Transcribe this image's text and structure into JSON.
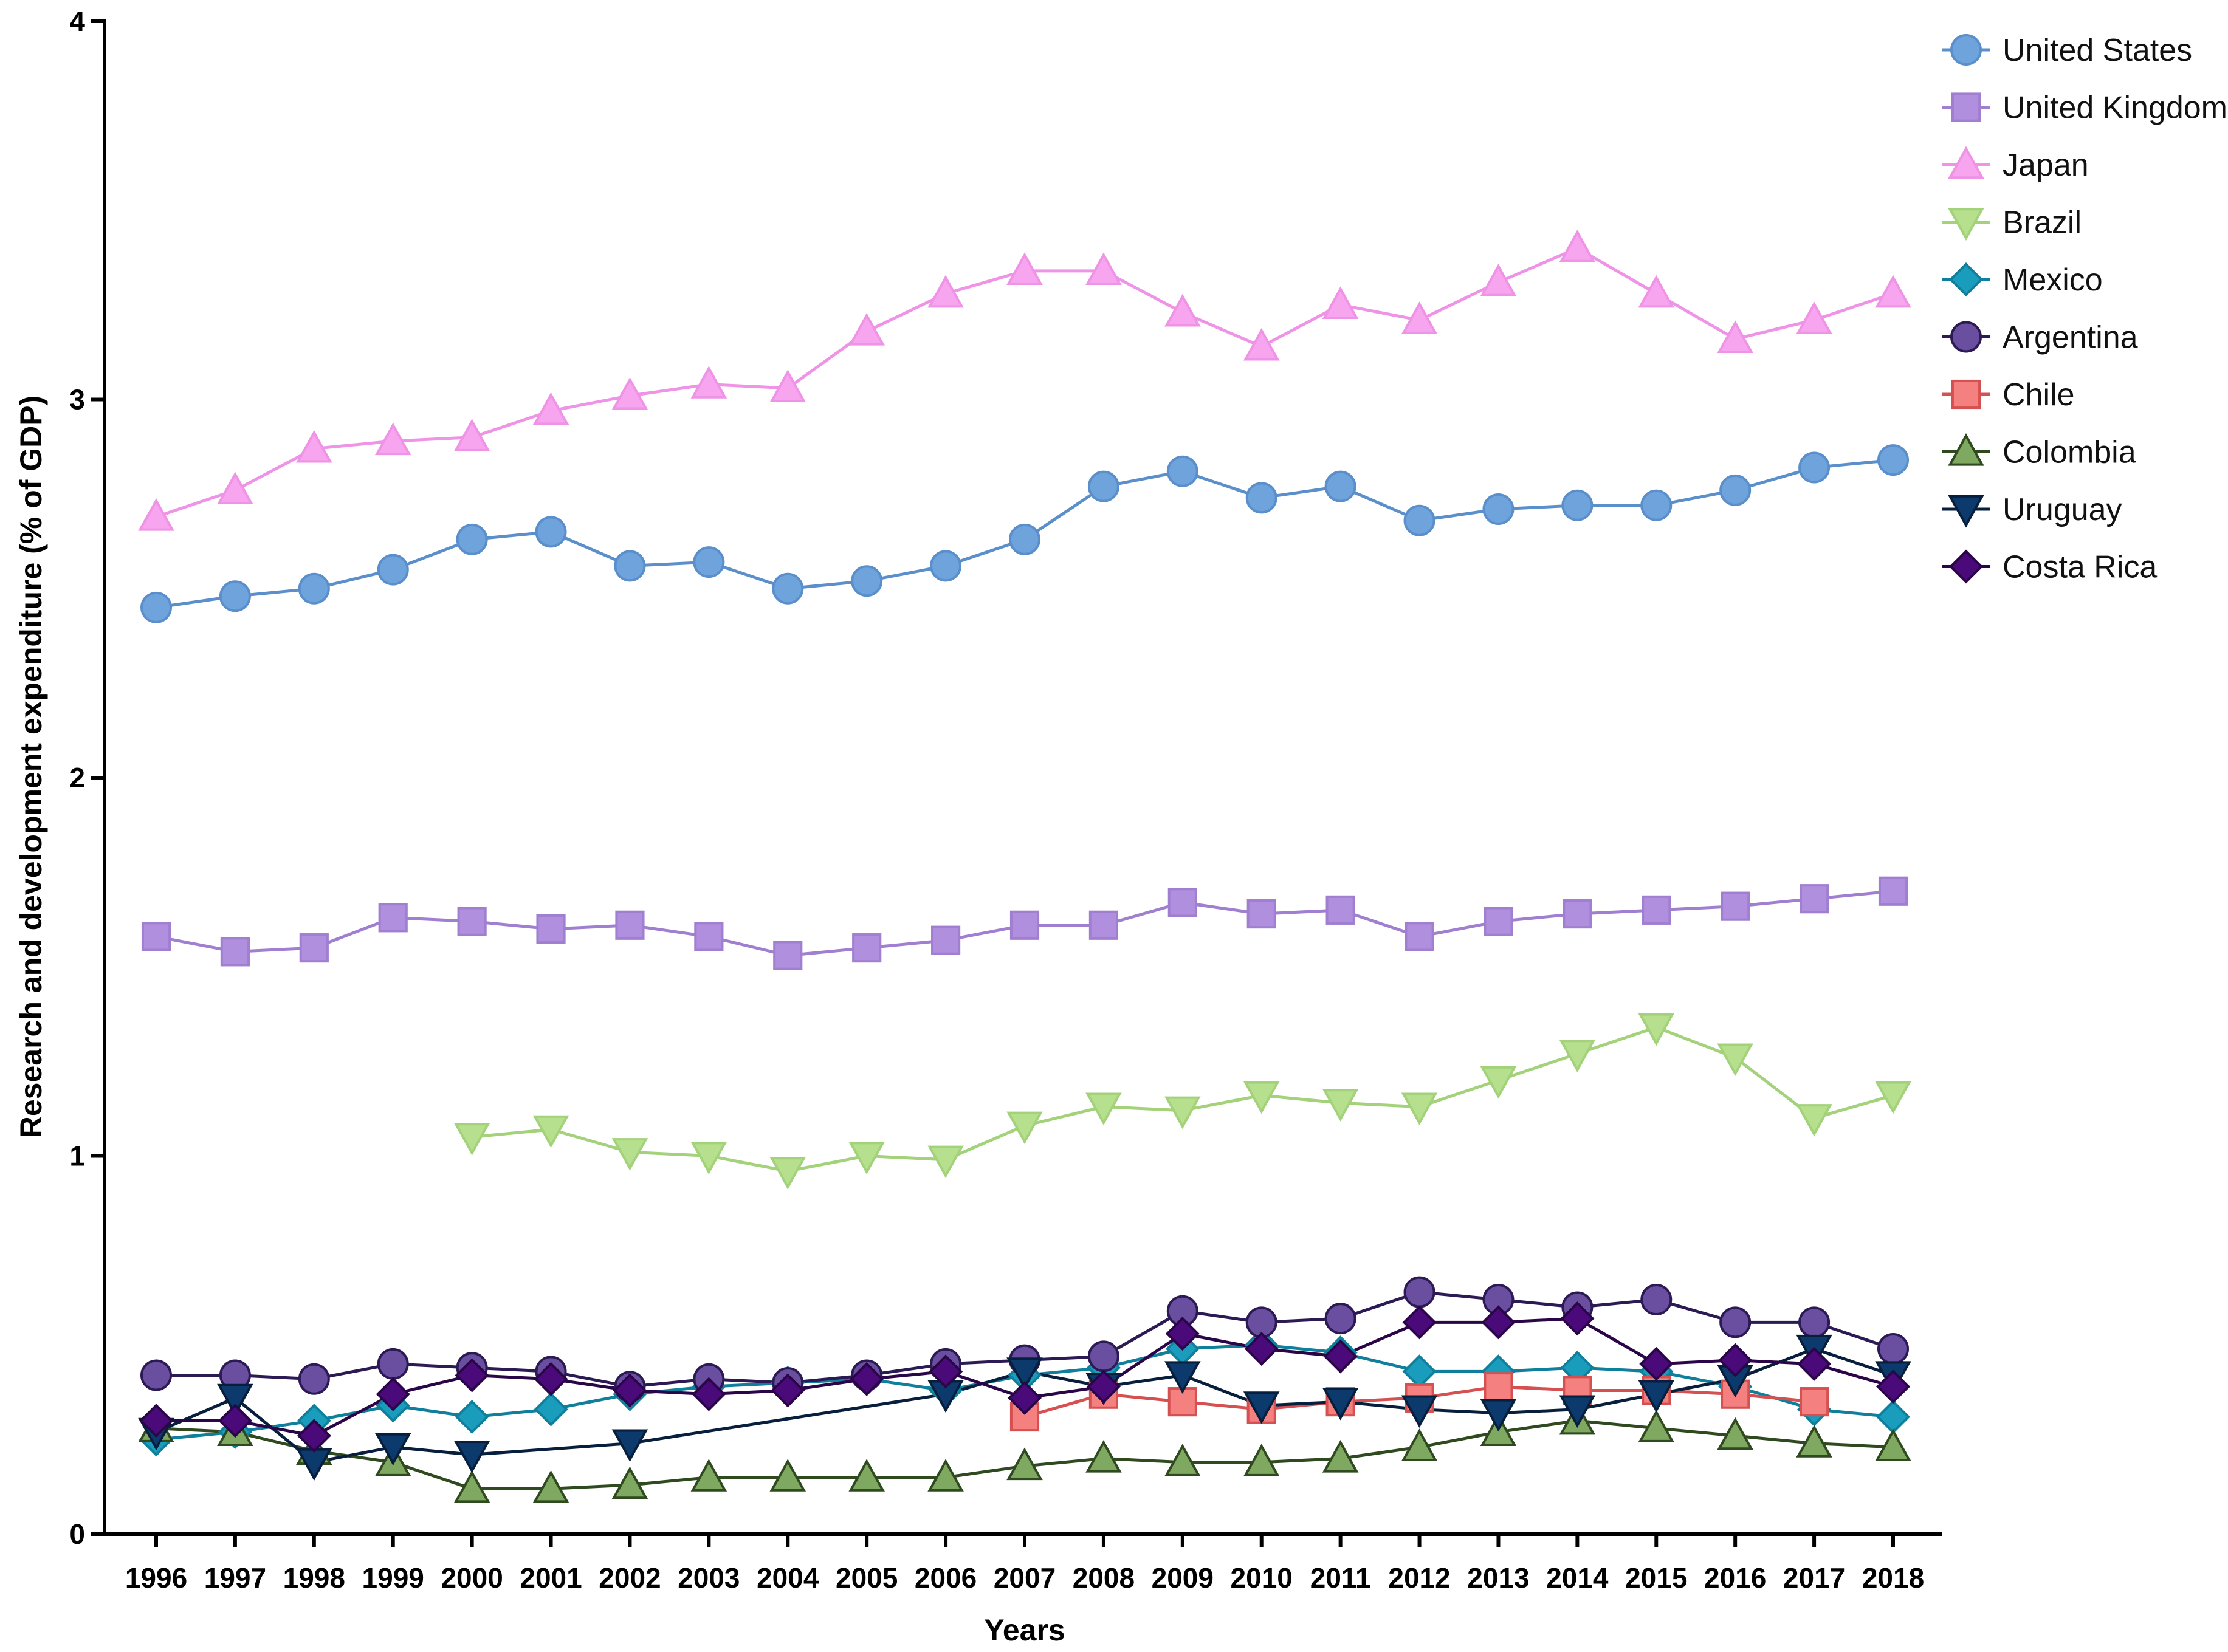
{
  "chart_data": {
    "type": "line",
    "title": "",
    "xlabel": "Years",
    "ylabel": "Research and development expenditure (% of GDP)",
    "ylim": [
      0,
      4
    ],
    "yticks": [
      0,
      1,
      2,
      3,
      4
    ],
    "x": [
      1996,
      1997,
      1998,
      1999,
      2000,
      2001,
      2002,
      2003,
      2004,
      2005,
      2006,
      2007,
      2008,
      2009,
      2010,
      2011,
      2012,
      2013,
      2014,
      2015,
      2016,
      2017,
      2018
    ],
    "legend_position": "top-right",
    "series": [
      {
        "name": "United States",
        "marker": "circle",
        "color": "#6fa3dc",
        "stroke": "#5a8fcc",
        "values": [
          2.45,
          2.48,
          2.5,
          2.55,
          2.63,
          2.65,
          2.56,
          2.57,
          2.5,
          2.52,
          2.56,
          2.63,
          2.77,
          2.81,
          2.74,
          2.77,
          2.68,
          2.71,
          2.72,
          2.72,
          2.76,
          2.82,
          2.84
        ]
      },
      {
        "name": "United Kingdom",
        "marker": "square",
        "color": "#b08fde",
        "stroke": "#a07fd0",
        "values": [
          1.58,
          1.54,
          1.55,
          1.63,
          1.62,
          1.6,
          1.61,
          1.58,
          1.53,
          1.55,
          1.57,
          1.61,
          1.61,
          1.67,
          1.64,
          1.65,
          1.58,
          1.62,
          1.64,
          1.65,
          1.66,
          1.68,
          1.7
        ]
      },
      {
        "name": "Japan",
        "marker": "triangle-up",
        "color": "#f7a5ef",
        "stroke": "#ef93e6",
        "values": [
          2.69,
          2.76,
          2.87,
          2.89,
          2.9,
          2.97,
          3.01,
          3.04,
          3.03,
          3.18,
          3.28,
          3.34,
          3.34,
          3.23,
          3.14,
          3.25,
          3.21,
          3.31,
          3.4,
          3.28,
          3.16,
          3.21,
          3.28
        ]
      },
      {
        "name": "Brazil",
        "marker": "triangle-down",
        "color": "#b6e08e",
        "stroke": "#a3d27b",
        "values": [
          null,
          null,
          null,
          null,
          1.05,
          1.07,
          1.01,
          1.0,
          0.96,
          1.0,
          0.99,
          1.08,
          1.13,
          1.12,
          1.16,
          1.14,
          1.13,
          1.2,
          1.27,
          1.34,
          1.26,
          1.1,
          1.16
        ]
      },
      {
        "name": "Mexico",
        "marker": "diamond",
        "color": "#1a9cbc",
        "stroke": "#0f7f9c",
        "values": [
          0.25,
          0.27,
          0.3,
          0.34,
          0.31,
          0.33,
          0.37,
          0.39,
          0.4,
          0.41,
          0.38,
          0.42,
          0.44,
          0.49,
          0.5,
          0.48,
          0.43,
          0.43,
          0.44,
          0.43,
          0.39,
          0.33,
          0.31
        ]
      },
      {
        "name": "Argentina",
        "marker": "circle",
        "color": "#6a4fa0",
        "stroke": "#2c1a55",
        "values": [
          0.42,
          0.42,
          0.41,
          0.45,
          0.44,
          0.43,
          0.39,
          0.41,
          0.4,
          0.42,
          0.45,
          0.46,
          0.47,
          0.59,
          0.56,
          0.57,
          0.64,
          0.62,
          0.6,
          0.62,
          0.56,
          0.56,
          0.49
        ]
      },
      {
        "name": "Chile",
        "marker": "square",
        "color": "#f48080",
        "stroke": "#d55050",
        "values": [
          null,
          null,
          null,
          null,
          null,
          null,
          null,
          null,
          null,
          null,
          null,
          0.31,
          0.37,
          0.35,
          0.33,
          0.35,
          0.36,
          0.39,
          0.38,
          0.38,
          0.37,
          0.35,
          null
        ]
      },
      {
        "name": "Colombia",
        "marker": "triangle-up",
        "color": "#7fa860",
        "stroke": "#2f4a1f",
        "values": [
          0.28,
          0.27,
          0.22,
          0.19,
          0.12,
          0.12,
          0.13,
          0.15,
          0.15,
          0.15,
          0.15,
          0.18,
          0.2,
          0.19,
          0.19,
          0.2,
          0.23,
          0.27,
          0.3,
          0.28,
          0.26,
          0.24,
          0.23
        ]
      },
      {
        "name": "Uruguay",
        "marker": "triangle-down",
        "color": "#0d3a6c",
        "stroke": "#071f3d",
        "values": [
          0.27,
          0.36,
          0.19,
          0.23,
          0.21,
          null,
          0.24,
          null,
          null,
          null,
          0.37,
          0.43,
          0.39,
          0.42,
          0.34,
          0.35,
          0.33,
          0.32,
          0.33,
          0.37,
          0.41,
          0.49,
          0.42
        ]
      },
      {
        "name": "Costa Rica",
        "marker": "diamond",
        "color": "#4a0a7a",
        "stroke": "#2a0548",
        "values": [
          0.3,
          0.3,
          0.26,
          0.37,
          0.42,
          0.41,
          0.38,
          0.37,
          0.38,
          0.41,
          0.43,
          0.36,
          0.39,
          0.53,
          0.49,
          0.47,
          0.56,
          0.56,
          0.57,
          0.45,
          0.46,
          0.45,
          0.39
        ]
      }
    ]
  }
}
